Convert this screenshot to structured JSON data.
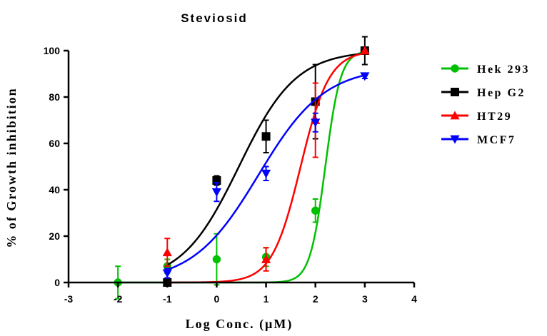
{
  "chart_data": {
    "type": "scatter",
    "title": "Steviosid",
    "xlabel": "Log Conc. (µM)",
    "ylabel": "% of Growth inhibition",
    "xlim": [
      -3,
      4
    ],
    "ylim": [
      0,
      100
    ],
    "xticks": [
      -3,
      -2,
      -1,
      0,
      1,
      2,
      3,
      4
    ],
    "yticks": [
      0,
      20,
      40,
      60,
      80,
      100
    ],
    "grid": false,
    "legend_position": "right",
    "series": [
      {
        "name": "Hek 293",
        "color": "#00c000",
        "marker": "circle",
        "x": [
          -2,
          -1,
          0,
          1,
          2,
          3
        ],
        "y": [
          0,
          7,
          10,
          11,
          31,
          100
        ],
        "err": [
          7,
          3,
          11,
          4,
          5,
          0
        ],
        "fit": {
          "bottom": 0,
          "top": 100,
          "logec50": 2.2,
          "hill": 2.8
        }
      },
      {
        "name": "Hep G2",
        "color": "#000000",
        "marker": "square",
        "x": [
          -1,
          0,
          1,
          2,
          3
        ],
        "y": [
          0,
          44,
          63,
          78,
          100
        ],
        "err": [
          0,
          2,
          7,
          16,
          6
        ],
        "fit": {
          "bottom": 0,
          "top": 100,
          "logec50": 0.45,
          "hill": 0.75
        }
      },
      {
        "name": "HT29",
        "color": "#ff0000",
        "marker": "triangle-up",
        "x": [
          -1,
          1,
          2,
          3
        ],
        "y": [
          13,
          10,
          70,
          100
        ],
        "err": [
          6,
          5,
          16,
          0
        ],
        "fit": {
          "bottom": 0,
          "top": 100,
          "logec50": 1.7,
          "hill": 1.5
        }
      },
      {
        "name": "MCF7",
        "color": "#0000ff",
        "marker": "triangle-down",
        "x": [
          -1,
          0,
          1,
          2,
          3
        ],
        "y": [
          4,
          39,
          47,
          69,
          89
        ],
        "err": [
          2,
          4,
          3,
          4,
          1
        ],
        "fit": {
          "bottom": 0,
          "top": 93,
          "logec50": 0.85,
          "hill": 0.65
        }
      }
    ]
  }
}
